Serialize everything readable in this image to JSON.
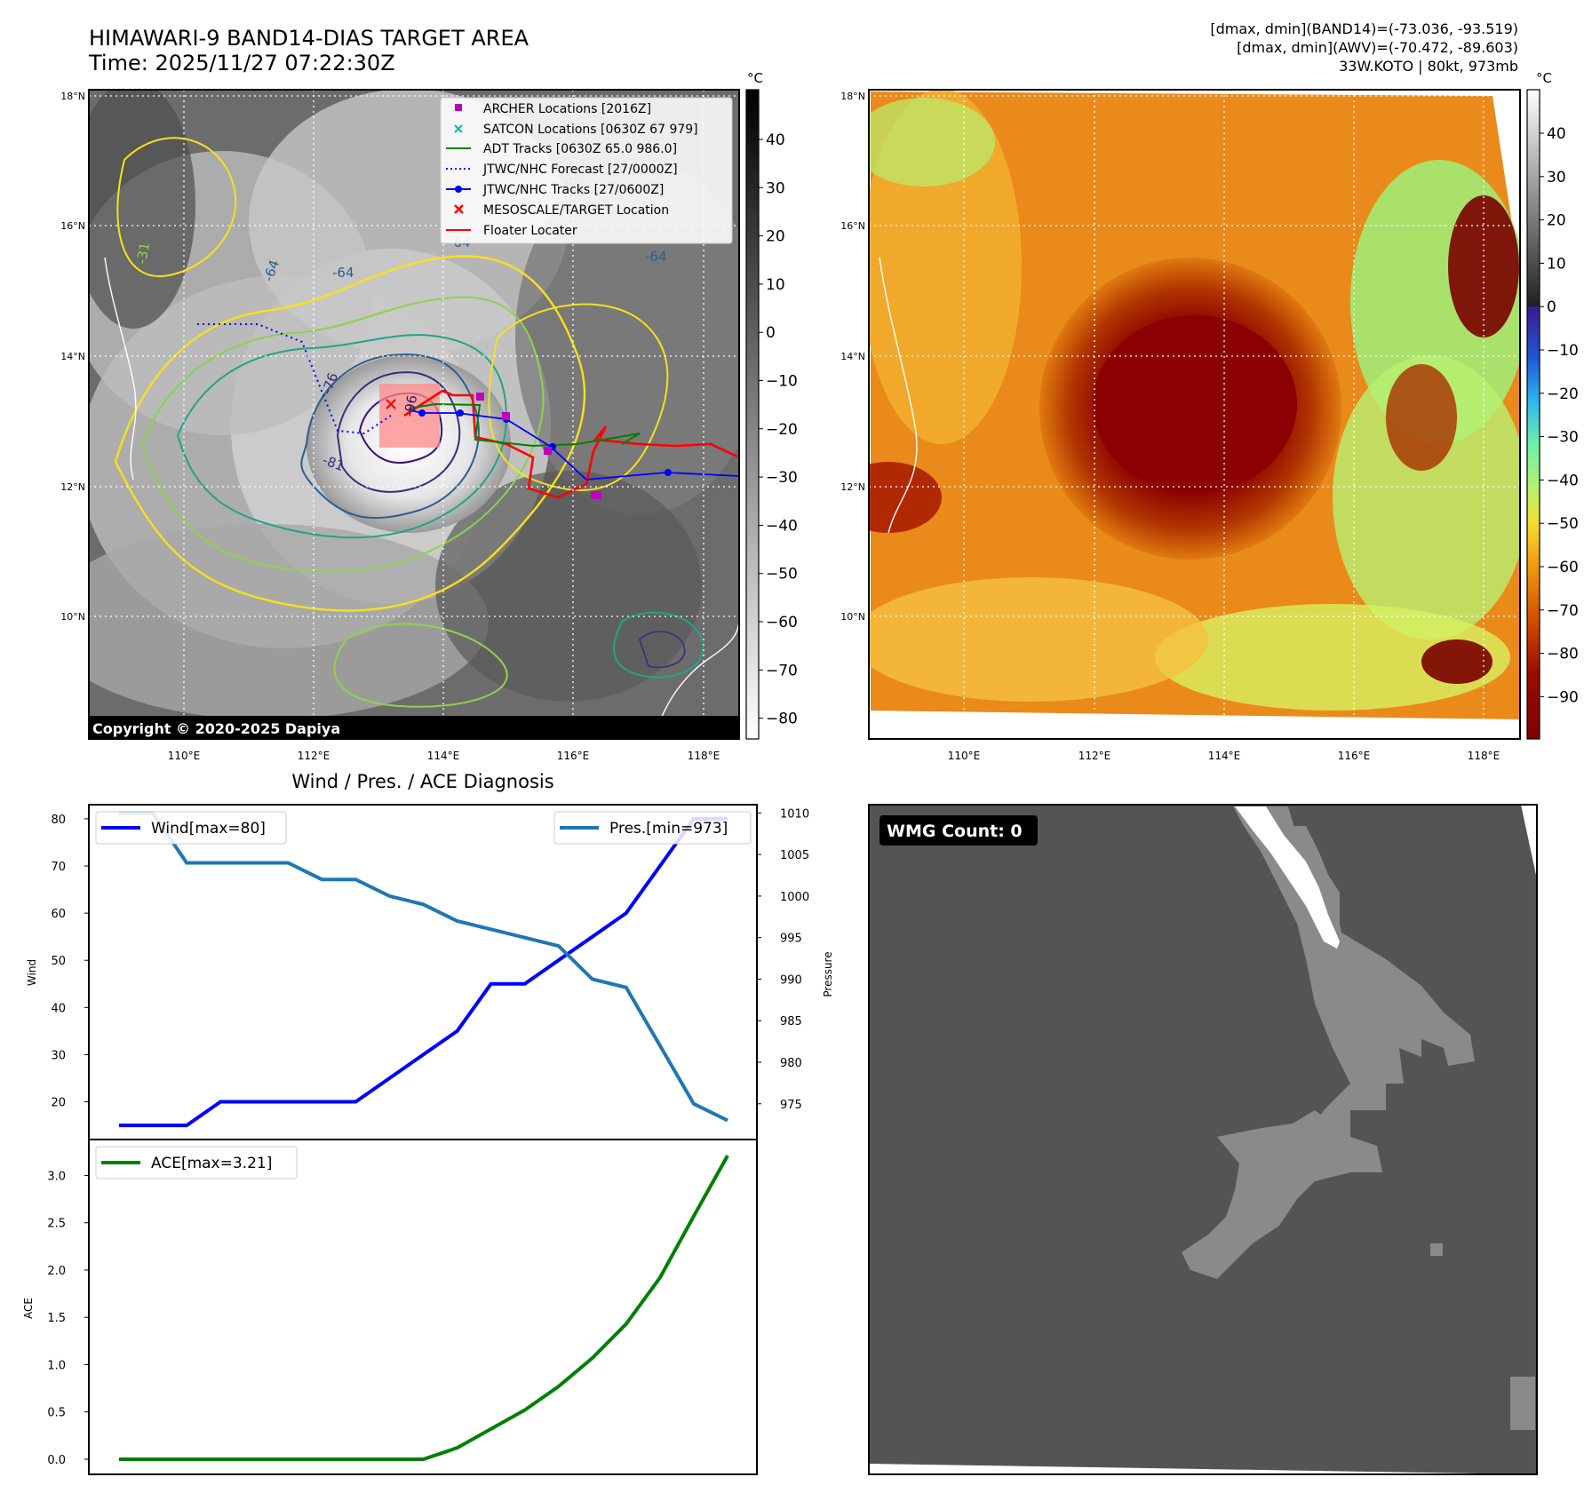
{
  "header": {
    "title": "HIMAWARI-9 BAND14-DIAS TARGET AREA",
    "time": "Time: 2025/11/27 07:22:30Z",
    "info": [
      "[dmax, dmin](BAND14)=(-73.036, -93.519)",
      "[dmax, dmin](AWV)=(-70.472, -89.603)",
      "33W.KOTO | 80kt, 973mb"
    ]
  },
  "maps": {
    "lat_labels": [
      "18°N",
      "16°N",
      "14°N",
      "12°N",
      "10°N"
    ],
    "lon_labels": [
      "110°E",
      "112°E",
      "114°E",
      "116°E",
      "118°E"
    ],
    "copyright": "Copyright © 2020-2025 Dapiya",
    "contour_labels": [
      "-31",
      "-64",
      "-64",
      "-64",
      "-76",
      "-81",
      "-96",
      "-64"
    ],
    "legend": [
      {
        "label": "ARCHER Locations [2016Z]",
        "marker": "square",
        "color": "#bf00bf"
      },
      {
        "label": "SATCON Locations [0630Z 67 979]",
        "marker": "x",
        "color": "#00bfbf"
      },
      {
        "label": "ADT Tracks [0630Z 65.0 986.0]",
        "marker": "line",
        "color": "#008000"
      },
      {
        "label": "JTWC/NHC Forecast [27/0000Z]",
        "marker": "dotted",
        "color": "#0000ff"
      },
      {
        "label": "JTWC/NHC Tracks [27/0600Z]",
        "marker": "line-dot",
        "color": "#0000ff"
      },
      {
        "label": "MESOSCALE/TARGET Location",
        "marker": "x",
        "color": "#ff0000"
      },
      {
        "label": "Floater Locater",
        "marker": "line",
        "color": "#ff0000"
      }
    ],
    "unit": "°C",
    "colorbar_left_ticks": [
      "40",
      "30",
      "20",
      "10",
      "0",
      "−10",
      "−20",
      "−30",
      "−40",
      "−50",
      "−60",
      "−70",
      "−80"
    ],
    "colorbar_right_ticks": [
      "40",
      "30",
      "20",
      "10",
      "0",
      "−10",
      "−20",
      "−30",
      "−40",
      "−50",
      "−60",
      "−70",
      "−80",
      "−90"
    ]
  },
  "chart_data": [
    {
      "type": "line",
      "title": "Wind / Pres. / ACE Diagnosis",
      "xlabel": "",
      "ylabel": "Wind",
      "ylabel_right": "Pressure",
      "y_ticks": [
        "80",
        "70",
        "60",
        "50",
        "40",
        "30",
        "20"
      ],
      "y2_ticks": [
        "1010",
        "1005",
        "1000",
        "995",
        "990",
        "985",
        "980",
        "975"
      ],
      "ylim": [
        12,
        83
      ],
      "y2lim": [
        970.7,
        1011
      ],
      "legend_left": "top-left",
      "legend_right": "top-right",
      "series": [
        {
          "name": "Wind[max=80]",
          "color": "#0000ff",
          "axis": "left",
          "values": [
            15,
            15,
            15,
            20,
            20,
            20,
            20,
            20,
            25,
            30,
            35,
            45,
            45,
            50,
            55,
            60,
            70,
            80,
            80
          ]
        },
        {
          "name": "Pres.[min=973]",
          "color": "#1f77b4",
          "axis": "right",
          "values": [
            1010,
            1010,
            1004,
            1004,
            1004,
            1004,
            1002,
            1002,
            1000,
            999,
            997,
            996,
            995,
            994,
            990,
            989,
            982,
            975,
            973
          ]
        }
      ]
    },
    {
      "type": "line",
      "title": "",
      "xlabel": "",
      "ylabel": "ACE",
      "y_ticks": [
        "3.0",
        "2.5",
        "2.0",
        "1.5",
        "1.0",
        "0.5",
        "0.0"
      ],
      "ylim": [
        -0.16,
        3.38
      ],
      "legend": "top-left",
      "series": [
        {
          "name": "ACE[max=3.21]",
          "color": "#008000",
          "values": [
            0,
            0,
            0,
            0,
            0,
            0,
            0,
            0,
            0,
            0,
            0.12,
            0.32,
            0.52,
            0.77,
            1.07,
            1.43,
            1.92,
            2.57,
            3.21
          ]
        }
      ]
    }
  ],
  "wmg": {
    "label": "WMG Count: 0"
  }
}
